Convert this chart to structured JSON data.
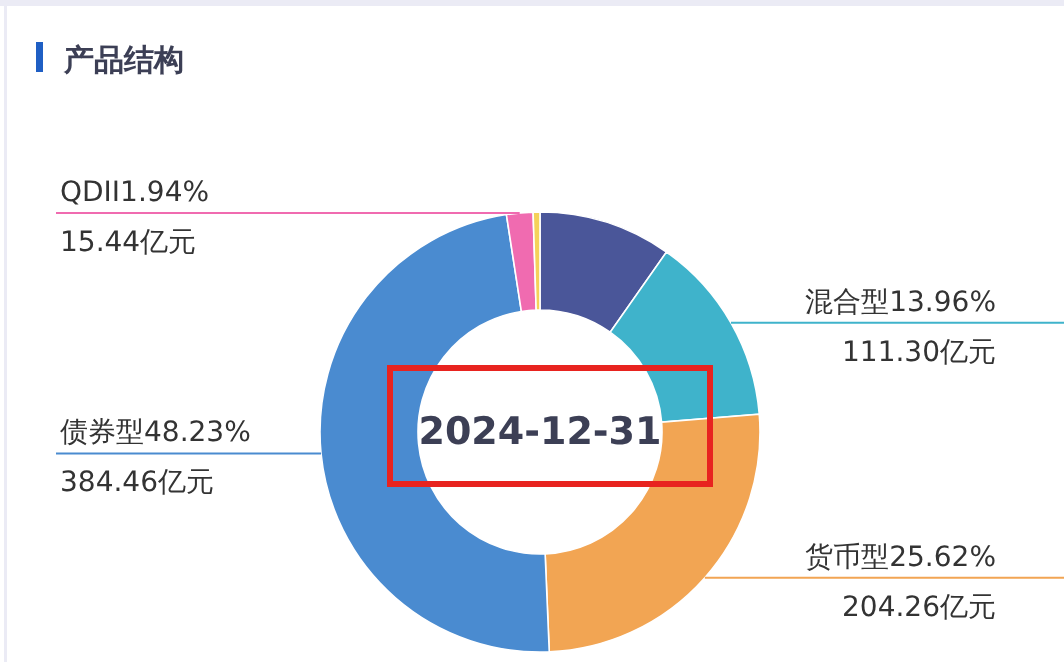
{
  "chart_data": {
    "type": "donut",
    "title": "产品结构",
    "subtitle": "2024-12-31",
    "categories": [
      null,
      "混合型",
      "货币型",
      "债券型",
      "QDII",
      null
    ],
    "values": [
      9.75,
      13.96,
      25.62,
      48.23,
      1.94,
      0.5
    ],
    "colors": [
      "#4a5699",
      "#3fb3cb",
      "#f2a553",
      "#4a8bd0",
      "#f06bb0",
      "#f5d15a"
    ],
    "value_labels": [
      null,
      "13.96%",
      "25.62%",
      "48.23%",
      "1.94%",
      null
    ],
    "annotations": [
      "111.30亿元",
      "204.26亿元",
      "384.46亿元",
      "15.44亿元"
    ]
  }
}
